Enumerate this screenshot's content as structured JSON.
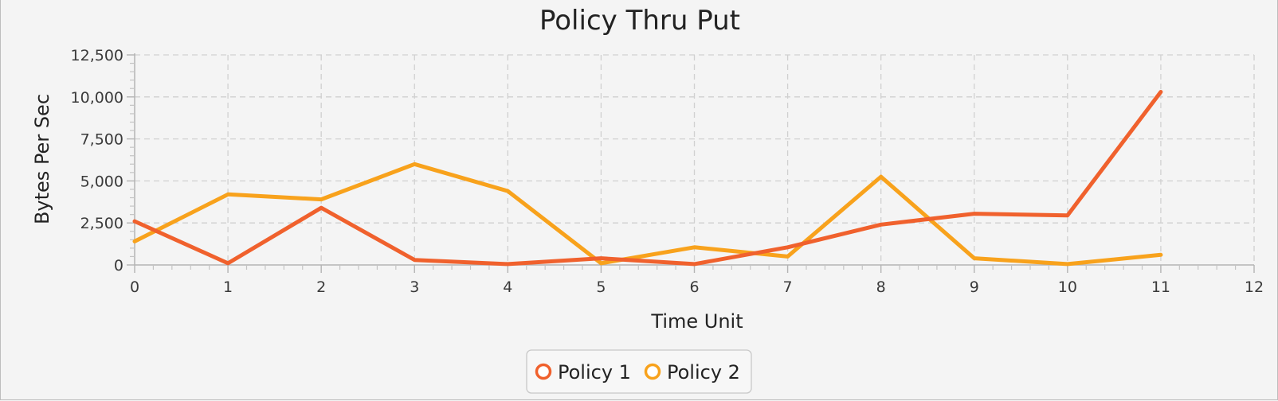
{
  "colors": {
    "policy1": "#f0612d",
    "policy2": "#f8a21c",
    "grid": "#d0d0d0",
    "background": "#f4f4f4"
  },
  "chart_data": {
    "type": "line",
    "title": "Policy Thru Put",
    "xlabel": "Time Unit",
    "ylabel": "Bytes Per Sec",
    "xlim": [
      0,
      12
    ],
    "ylim": [
      0,
      12500
    ],
    "x_ticks": [
      "0",
      "1",
      "2",
      "3",
      "4",
      "5",
      "6",
      "7",
      "8",
      "9",
      "10",
      "11",
      "12"
    ],
    "y_ticks": [
      "0",
      "2,500",
      "5,000",
      "7,500",
      "10,000",
      "12,500"
    ],
    "grid": true,
    "legend_position": "bottom-center",
    "x": [
      0,
      1,
      2,
      3,
      4,
      5,
      6,
      7,
      8,
      9,
      10,
      11
    ],
    "series": [
      {
        "name": "Policy 1",
        "color": "#f0612d",
        "values": [
          2600,
          100,
          3400,
          300,
          50,
          400,
          50,
          1050,
          2400,
          3050,
          2950,
          10300
        ]
      },
      {
        "name": "Policy 2",
        "color": "#f8a21c",
        "values": [
          1400,
          4200,
          3900,
          6000,
          4400,
          100,
          1050,
          500,
          5250,
          400,
          50,
          600
        ]
      }
    ]
  }
}
